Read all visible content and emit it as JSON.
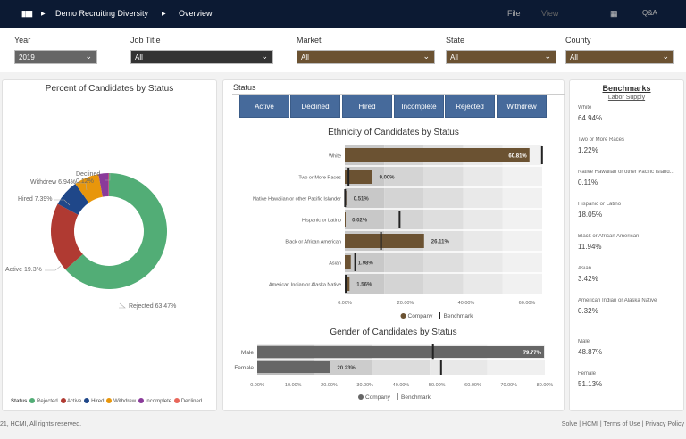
{
  "topbar": {
    "breadcrumb": [
      "Demo Recruiting Diversity",
      "Overview"
    ],
    "menu": [
      "File",
      "View"
    ],
    "qa": "Q&A"
  },
  "filters": [
    {
      "label": "Year",
      "value": "2019",
      "color": "#666666"
    },
    {
      "label": "Job Title",
      "value": "All",
      "color": "#333333"
    },
    {
      "label": "Market",
      "value": "All",
      "color": "#6b5232"
    },
    {
      "label": "State",
      "value": "All",
      "color": "#6b5232"
    },
    {
      "label": "County",
      "value": "All",
      "color": "#6b5232"
    }
  ],
  "status_panel": {
    "label": "Status",
    "buttons": [
      "Active",
      "Declined",
      "Hired",
      "Incomplete",
      "Rejected",
      "Withdrew"
    ]
  },
  "chart_data": [
    {
      "type": "pie",
      "title": "Percent of Candidates by Status",
      "legend_title": "Status",
      "legend_position": "bottom",
      "categories": [
        "Rejected",
        "Active",
        "Hired",
        "Withdrew",
        "Incomplete",
        "Declined"
      ],
      "values": [
        63.47,
        19.3,
        7.39,
        6.94,
        2.78,
        0.12
      ],
      "labels": [
        "Rejected 63.47%",
        "Active 19.3%",
        "Hired 7.39%",
        "Withdrew 6.94%",
        "",
        "Declined 0.12%"
      ],
      "colors": [
        "#52ad76",
        "#b03a32",
        "#1f4789",
        "#e8960b",
        "#8a3a9a",
        "#e8665a"
      ]
    },
    {
      "type": "bar",
      "title": "Ethnicity of Candidates by Status",
      "orientation": "horizontal",
      "categories": [
        "White",
        "Two or More Races",
        "Native Hawaiian or other Pacific Islander",
        "Hispanic or Latino",
        "Black or African American",
        "Asian",
        "American Indian or Alaska Native"
      ],
      "series": [
        {
          "name": "Company",
          "values": [
            60.81,
            9.0,
            0.51,
            0.02,
            26.11,
            1.98,
            1.56
          ],
          "labels": [
            "60.81%",
            "9.00%",
            "0.51%",
            "0.02%",
            "26.11%",
            "1.98%",
            "1.56%"
          ],
          "color": "#6b5232"
        },
        {
          "name": "Benchmark",
          "values": [
            64.94,
            1.22,
            0.11,
            18.05,
            11.94,
            3.42,
            0.32
          ],
          "color": "#222222"
        }
      ],
      "xticks": [
        "0.00%",
        "20.00%",
        "40.00%",
        "60.00%"
      ],
      "xlim": [
        0,
        65
      ],
      "legend_position": "bottom"
    },
    {
      "type": "bar",
      "title": "Gender of Candidates by Status",
      "orientation": "horizontal",
      "categories": [
        "Male",
        "Female"
      ],
      "series": [
        {
          "name": "Company",
          "values": [
            79.77,
            20.23
          ],
          "labels": [
            "79.77%",
            "20.23%"
          ],
          "color": "#666666"
        },
        {
          "name": "Benchmark",
          "values": [
            48.87,
            51.13
          ],
          "color": "#222222"
        }
      ],
      "xticks": [
        "0.00%",
        "10.00%",
        "20.00%",
        "30.00%",
        "40.00%",
        "50.00%",
        "60.00%",
        "70.00%",
        "80.00%"
      ],
      "xlim": [
        0,
        80
      ],
      "legend_position": "bottom"
    }
  ],
  "benchmarks": {
    "title": "Benchmarks",
    "subtitle": "Labor Supply",
    "items": [
      {
        "name": "White",
        "value": "64.94%"
      },
      {
        "name": "Two or More Races",
        "value": "1.22%"
      },
      {
        "name": "Native Hawaiian or other Pacific Island...",
        "value": "0.11%"
      },
      {
        "name": "Hispanic or Latino",
        "value": "18.05%"
      },
      {
        "name": "Black or African American",
        "value": "11.94%"
      },
      {
        "name": "Asian",
        "value": "3.42%"
      },
      {
        "name": "American Indian or Alaska Native",
        "value": "0.32%"
      },
      {
        "name": "Male",
        "value": "48.87%"
      },
      {
        "name": "Female",
        "value": "51.13%"
      }
    ]
  },
  "footer": {
    "copyright": "21, HCMI, All rights reserved.",
    "links": "Solve | HCMI | Terms of Use | Privacy Policy"
  }
}
